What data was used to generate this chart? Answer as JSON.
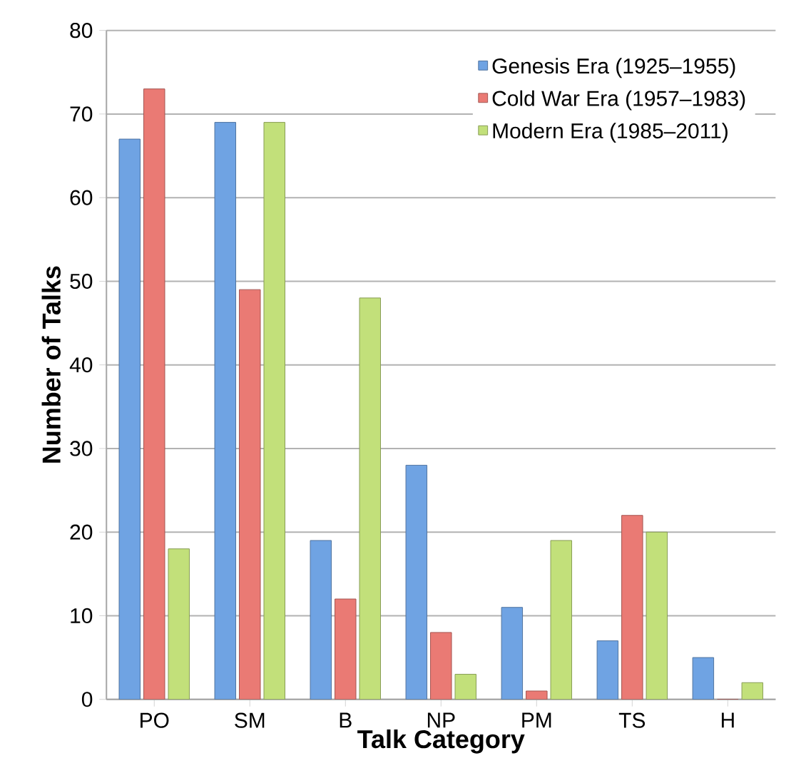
{
  "chart_data": {
    "type": "bar",
    "xlabel": "Talk Category",
    "ylabel": "Number of Talks",
    "categories": [
      "PO",
      "SM",
      "B",
      "NP",
      "PM",
      "TS",
      "H"
    ],
    "series": [
      {
        "name": "Genesis Era (1925–1955)",
        "color": "#6fa3e3",
        "values": [
          67,
          69,
          19,
          28,
          11,
          7,
          5
        ]
      },
      {
        "name": "Cold War Era (1957–1983)",
        "color": "#ea7a74",
        "values": [
          73,
          49,
          12,
          8,
          1,
          22,
          0
        ]
      },
      {
        "name": "Modern Era (1985–2011)",
        "color": "#c2e07a",
        "values": [
          18,
          69,
          48,
          3,
          19,
          20,
          2
        ]
      }
    ],
    "ylim": [
      0,
      80
    ],
    "yticks": [
      0,
      10,
      20,
      30,
      40,
      50,
      60,
      70,
      80
    ],
    "grid": "y",
    "legend": "top right"
  }
}
